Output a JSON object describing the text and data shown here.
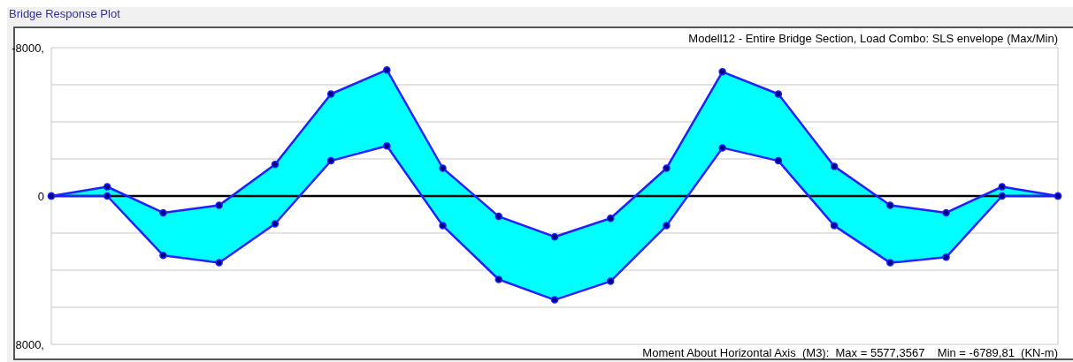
{
  "chart_data": {
    "type": "line",
    "title": "Bridge Response Plot",
    "subtitle": "Modell12 - Entire Bridge Section,  Load Combo: SLS envelope (Max/Min)",
    "annotations": [
      "Moment About Horizontal Axis  (M3):  Max = 5577,3567    Min = -6789,81  (KN-m)"
    ],
    "categories": [
      null,
      null,
      null,
      null,
      null,
      null,
      null,
      null,
      null,
      null,
      null,
      null,
      null,
      null,
      null,
      null,
      null,
      null,
      null
    ],
    "series": [
      {
        "color": "#2020ff",
        "values": [
          0,
          -500,
          900,
          500,
          -1700,
          -5500,
          -6800,
          -1500,
          1100,
          2200,
          1200,
          -1500,
          -6700,
          -5500,
          -1600,
          500,
          900,
          -500,
          0
        ],
        "lower": [
          0,
          -500,
          900,
          500,
          -1700,
          -5500,
          -6800,
          -1500,
          1100,
          2200,
          1200,
          -1500,
          -6700,
          -5500,
          -1600,
          500,
          900,
          -500,
          0
        ],
        "upper": [
          0,
          0,
          3200,
          3600,
          1500,
          -1900,
          -2700,
          1600,
          4500,
          5600,
          4600,
          1600,
          -2600,
          -1900,
          1600,
          3600,
          3300,
          0,
          0
        ]
      },
      {
        "color": "#2020ff",
        "values": [
          0,
          0,
          3200,
          3600,
          1500,
          -1900,
          -2700,
          1600,
          4500,
          5600,
          4600,
          1600,
          -2600,
          -1900,
          1600,
          3600,
          3300,
          0,
          0
        ]
      }
    ],
    "ylim": [
      8000,
      -8000
    ],
    "yticks": [
      {
        "value": -8000,
        "label": "-8000,"
      },
      {
        "value": -6000,
        "label": null
      },
      {
        "value": -4000,
        "label": null
      },
      {
        "value": -2000,
        "label": null
      },
      0,
      {
        "value": 2000,
        "label": null
      },
      {
        "value": 4000,
        "label": null
      },
      {
        "value": 6000,
        "label": null
      },
      {
        "value": 8000,
        "label": "8000,"
      }
    ],
    "ref_lines": [
      {
        "axis": "y",
        "value": 0,
        "color": "#000000"
      }
    ],
    "tick_labels": "y",
    "grid": true,
    "marker": "circle",
    "line_style": "solid"
  }
}
